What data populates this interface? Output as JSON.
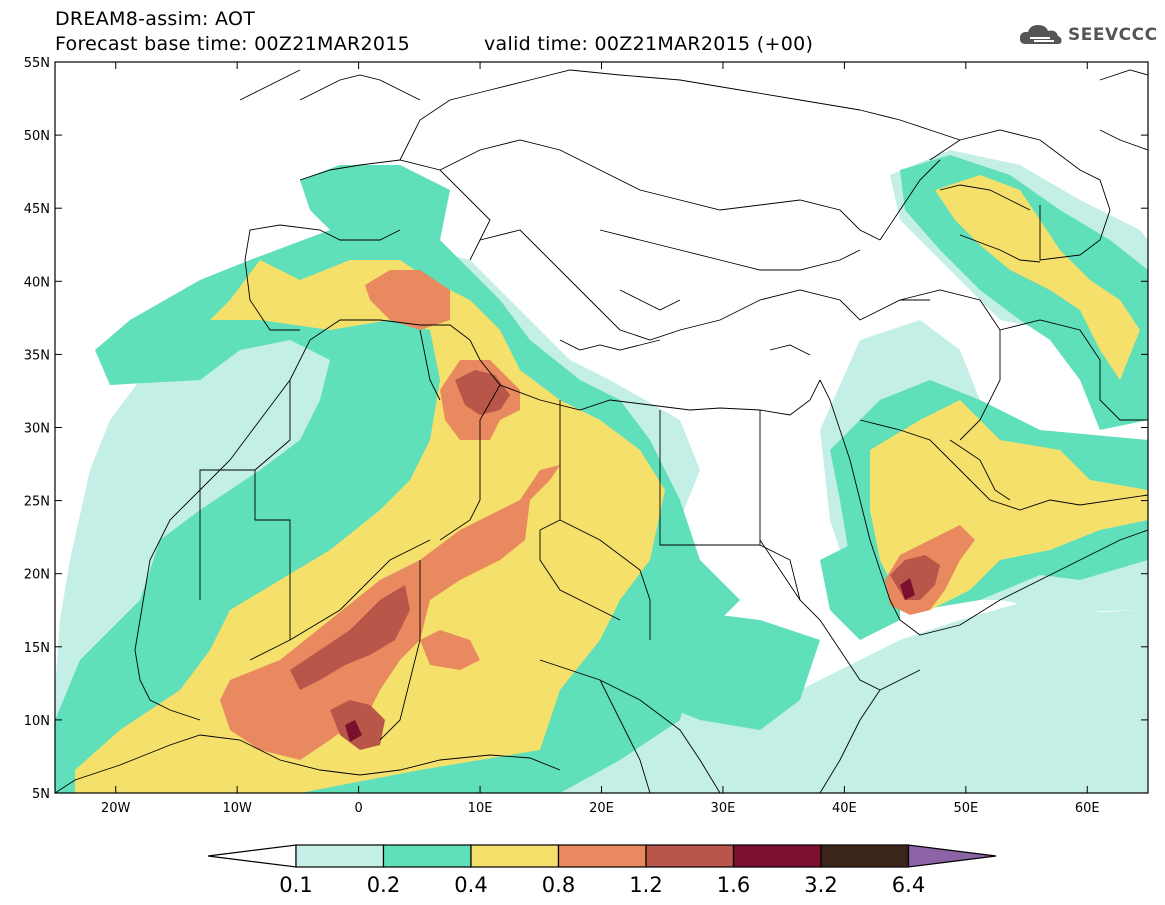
{
  "header": {
    "title": "DREAM8-assim: AOT",
    "base_time": "Forecast base time: 00Z21MAR2015",
    "valid_time": "valid time: 00Z21MAR2015 (+00)"
  },
  "logo": {
    "text": "SEEVCCC",
    "icon": "cloud-logo-icon"
  },
  "map": {
    "lat_labels": [
      "55N",
      "50N",
      "45N",
      "40N",
      "35N",
      "30N",
      "25N",
      "20N",
      "15N",
      "10N",
      "5N"
    ],
    "lon_labels": [
      "20W",
      "10W",
      "0",
      "10E",
      "20E",
      "30E",
      "40E",
      "50E",
      "60E"
    ],
    "lat_range": [
      5,
      55
    ],
    "lon_range": [
      -25,
      65
    ]
  },
  "colorbar": {
    "levels": [
      "0.1",
      "0.2",
      "0.4",
      "0.8",
      "1.2",
      "1.6",
      "3.2",
      "6.4"
    ],
    "colors": [
      "#c4efe6",
      "#5fdfba",
      "#f5e06b",
      "#e88960",
      "#b75649",
      "#7a0f2e",
      "#3b2418",
      "#8b63a6"
    ],
    "below_color": "#ffffff"
  },
  "colors": {
    "c01": "#c4efe6",
    "c02": "#5fdfba",
    "c04": "#f5e06b",
    "c08": "#e88960",
    "c12": "#b75649",
    "c16": "#7a0f2e"
  }
}
